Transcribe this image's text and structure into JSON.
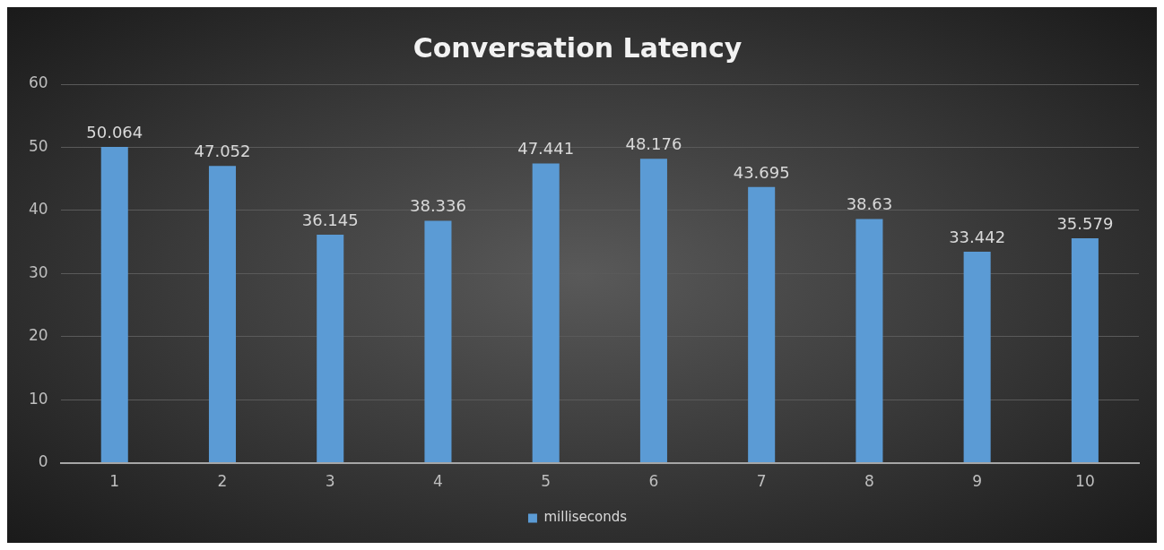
{
  "chart_data": {
    "type": "bar",
    "title": "Conversation Latency",
    "categories": [
      "1",
      "2",
      "3",
      "4",
      "5",
      "6",
      "7",
      "8",
      "9",
      "10"
    ],
    "series": [
      {
        "name": "milliseconds",
        "color": "#5b9bd5",
        "values": [
          50.064,
          47.052,
          36.145,
          38.336,
          47.441,
          48.176,
          43.695,
          38.63,
          33.442,
          35.579
        ]
      }
    ],
    "ylim": [
      0,
      60
    ],
    "yticks": [
      0,
      10,
      20,
      30,
      40,
      50,
      60
    ],
    "grid": "y",
    "legend": "bottom",
    "data_labels": true
  }
}
